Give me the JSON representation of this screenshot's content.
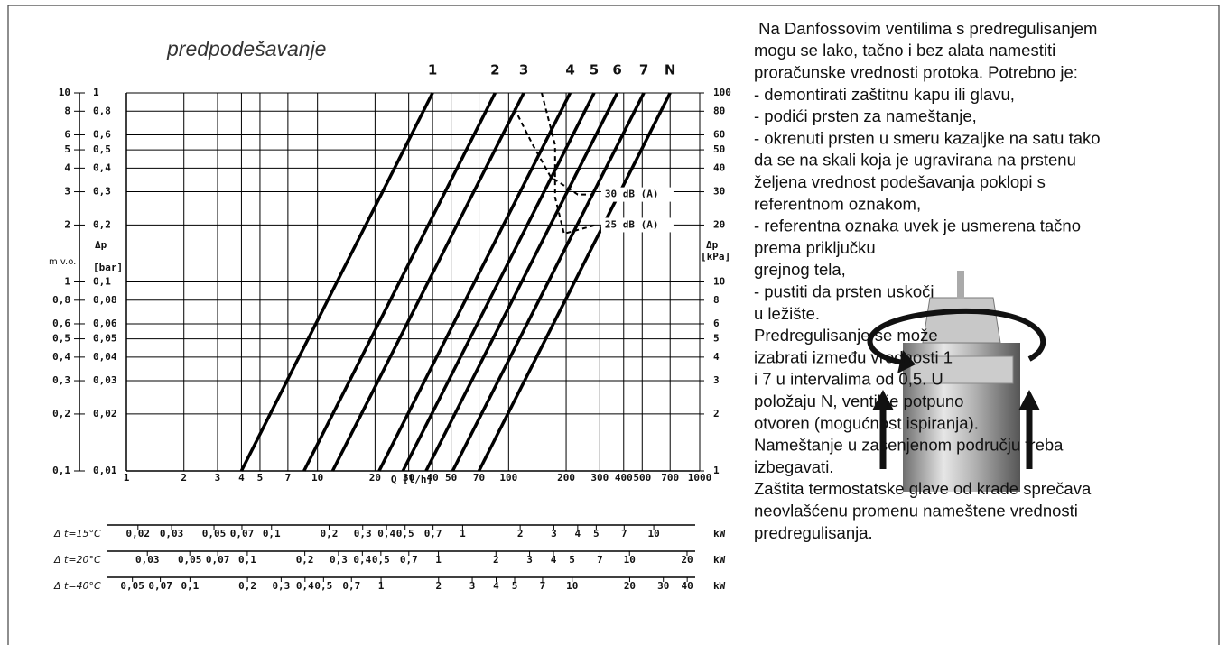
{
  "chart_data": {
    "type": "line",
    "title": "predpodešavanje",
    "x_label": "Q [l/h]",
    "xscale": "log",
    "yscale": "log",
    "grid": true,
    "xlim": [
      1,
      1000
    ],
    "xticks": [
      1,
      2,
      3,
      4,
      5,
      7,
      10,
      20,
      30,
      40,
      50,
      70,
      100,
      200,
      300,
      400,
      500,
      700,
      1000
    ],
    "ylim": [
      0.01,
      1
    ],
    "y_label": "Δp",
    "y_unit": "[bar]",
    "yticks": [
      {
        "value": 0.01,
        "label": "0,01"
      },
      {
        "value": 0.02,
        "label": "0,02"
      },
      {
        "value": 0.03,
        "label": "0,03"
      },
      {
        "value": 0.04,
        "label": "0,04"
      },
      {
        "value": 0.05,
        "label": "0,05"
      },
      {
        "value": 0.06,
        "label": "0,06"
      },
      {
        "value": 0.08,
        "label": "0,08"
      },
      {
        "value": 0.1,
        "label": "0,1"
      },
      {
        "value": 0.2,
        "label": "0,2"
      },
      {
        "value": 0.3,
        "label": "0,3"
      },
      {
        "value": 0.4,
        "label": "0,4"
      },
      {
        "value": 0.5,
        "label": "0,5"
      },
      {
        "value": 0.6,
        "label": "0,6"
      },
      {
        "value": 0.8,
        "label": "0,8"
      },
      1
    ],
    "y2lim": [
      1,
      100
    ],
    "y2_label": "Δp",
    "y2_unit": "[kPa]",
    "y2ticks": [
      1,
      2,
      3,
      4,
      5,
      6,
      8,
      10,
      20,
      30,
      40,
      50,
      60,
      80,
      100
    ],
    "y3lim": [
      0.1,
      10
    ],
    "y3_label": "m v.o.",
    "y3ticks": [
      {
        "value": 0.1,
        "label": "0,1"
      },
      {
        "value": 0.2,
        "label": "0,2"
      },
      {
        "value": 0.3,
        "label": "0,3"
      },
      {
        "value": 0.4,
        "label": "0,4"
      },
      {
        "value": 0.5,
        "label": "0,5"
      },
      {
        "value": 0.6,
        "label": "0,6"
      },
      {
        "value": 0.8,
        "label": "0,8"
      },
      1,
      2,
      3,
      4,
      5,
      6,
      8,
      10
    ],
    "series": [
      {
        "name": "1",
        "color": "#000000",
        "x": [
          4,
          40
        ],
        "values": [
          0.01,
          1
        ]
      },
      {
        "name": "2",
        "color": "#000000",
        "x": [
          8.5,
          85
        ],
        "values": [
          0.01,
          1
        ]
      },
      {
        "name": "3",
        "color": "#000000",
        "x": [
          12,
          120
        ],
        "values": [
          0.01,
          1
        ]
      },
      {
        "name": "4",
        "color": "#000000",
        "x": [
          21,
          210
        ],
        "values": [
          0.01,
          1
        ]
      },
      {
        "name": "5",
        "color": "#000000",
        "x": [
          28,
          280
        ],
        "values": [
          0.01,
          1
        ]
      },
      {
        "name": "6",
        "color": "#000000",
        "x": [
          37,
          370
        ],
        "values": [
          0.01,
          1
        ]
      },
      {
        "name": "7",
        "color": "#000000",
        "x": [
          51,
          510
        ],
        "values": [
          0.01,
          1
        ]
      },
      {
        "name": "N",
        "color": "#000000",
        "x": [
          70,
          700
        ],
        "values": [
          0.01,
          1
        ]
      },
      {
        "name": "30 dB (A)",
        "color": "#000000",
        "dashed": true,
        "x": [
          107,
          134,
          166,
          230,
          286
        ],
        "values": [
          0.83,
          0.53,
          0.36,
          0.29,
          0.29
        ]
      },
      {
        "name": "25 dB (A)",
        "color": "#000000",
        "dashed": true,
        "x": [
          149,
          175,
          175,
          195,
          286
        ],
        "values": [
          1,
          0.53,
          0.28,
          0.18,
          0.2
        ]
      }
    ],
    "power_scales": [
      {
        "label": "Δ t=15°C",
        "unit": "kW",
        "lim": [
          0.0174,
          17.4
        ],
        "ticks": [
          {
            "value": 0.02,
            "label": "0,02"
          },
          {
            "value": 0.03,
            "label": "0,03"
          },
          {
            "value": 0.05,
            "label": "0,05"
          },
          {
            "value": 0.07,
            "label": "0,07"
          },
          {
            "value": 0.1,
            "label": "0,1"
          },
          {
            "value": 0.2,
            "label": "0,2"
          },
          {
            "value": 0.3,
            "label": "0,3"
          },
          {
            "value": 0.4,
            "label": "0,4"
          },
          {
            "value": 0.5,
            "label": "0,5"
          },
          {
            "value": 0.7,
            "label": "0,7"
          },
          1,
          2,
          3,
          4,
          5,
          7,
          10
        ]
      },
      {
        "label": "Δ t=20°C",
        "unit": "kW",
        "lim": [
          0.0233,
          23.3
        ],
        "ticks": [
          {
            "value": 0.03,
            "label": "0,03"
          },
          {
            "value": 0.05,
            "label": "0,05"
          },
          {
            "value": 0.07,
            "label": "0,07"
          },
          {
            "value": 0.1,
            "label": "0,1"
          },
          {
            "value": 0.2,
            "label": "0,2"
          },
          {
            "value": 0.3,
            "label": "0,3"
          },
          {
            "value": 0.4,
            "label": "0,4"
          },
          {
            "value": 0.5,
            "label": "0,5"
          },
          {
            "value": 0.7,
            "label": "0,7"
          },
          1,
          2,
          3,
          4,
          5,
          7,
          10,
          20
        ]
      },
      {
        "label": "Δ t=40°C",
        "unit": "kW",
        "lim": [
          0.0465,
          46.5
        ],
        "ticks": [
          {
            "value": 0.05,
            "label": "0,05"
          },
          {
            "value": 0.07,
            "label": "0,07"
          },
          {
            "value": 0.1,
            "label": "0,1"
          },
          {
            "value": 0.2,
            "label": "0,2"
          },
          {
            "value": 0.3,
            "label": "0,3"
          },
          {
            "value": 0.4,
            "label": "0,4"
          },
          {
            "value": 0.5,
            "label": "0,5"
          },
          {
            "value": 0.7,
            "label": "0,7"
          },
          1,
          2,
          3,
          4,
          5,
          7,
          10,
          20,
          30,
          40
        ]
      }
    ]
  },
  "description": [
    " Na Danfossovim ventilima s predregulisanjem",
    "mogu se lako, tačno i bez alata namestiti",
    "proračunske vrednosti protoka. Potrebno je:",
    "- demontirati zaštitnu kapu ili glavu,",
    "- podići prsten za nameštanje,",
    "- okrenuti prsten u smeru kazaljke na satu tako",
    "da se na skali koja je ugravirana na prstenu",
    "željena vrednost podešavanja poklopi s",
    "referentnom oznakom,",
    "- referentna oznaka uvek je usmerena tačno",
    "prema priključku",
    "grejnog tela,",
    "- pustiti da prsten uskoči",
    "u ležište.",
    "Predregulisanje se može",
    "izabrati između vrednosti 1",
    "i 7 u intervalima od 0,5. U",
    "položaju N, ventil je potpuno",
    "otvoren (mogućnost ispiranja).",
    "Nameštanje u zasenjenom području treba",
    "izbegavati.",
    "Zaštita termostatske glave od krađe sprečava",
    "neovlašćenu promenu nameštene vrednosti",
    "predregulisanja."
  ]
}
